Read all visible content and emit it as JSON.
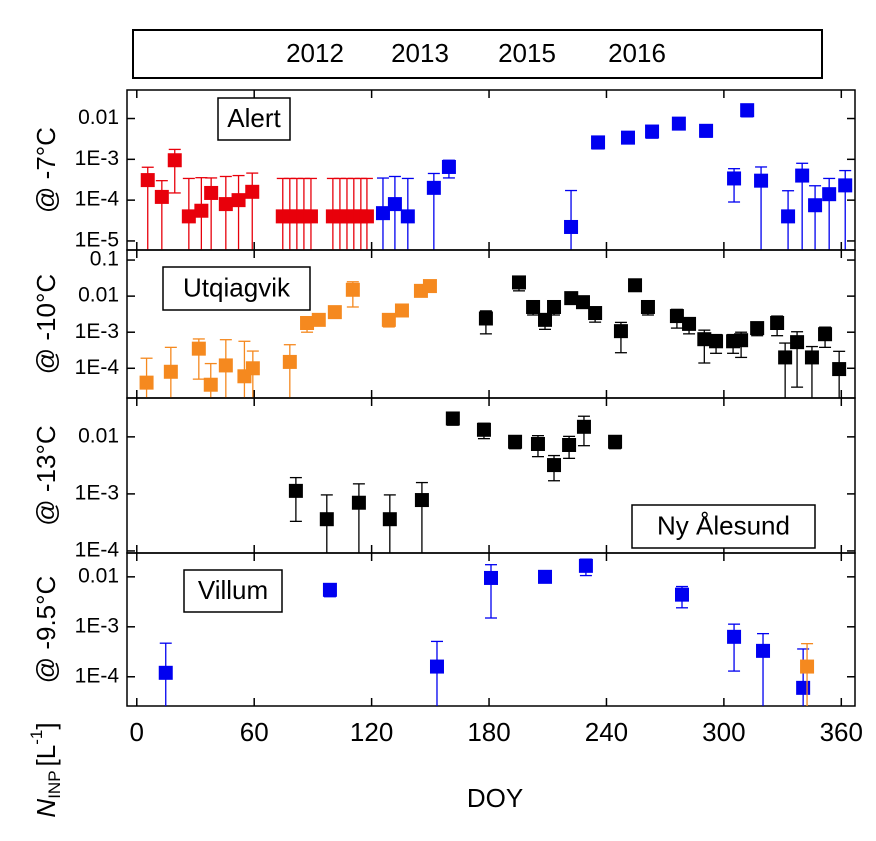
{
  "legend": [
    {
      "name": "2012",
      "color": "#000000"
    },
    {
      "name": "2013",
      "color": "#f5891f"
    },
    {
      "name": "2015",
      "color": "#0000f0"
    },
    {
      "name": "2016",
      "color": "#e8000b"
    }
  ],
  "x_axis": {
    "label": "DOY",
    "xlim": [
      -5,
      367
    ],
    "xticks": [
      0,
      60,
      120,
      180,
      240,
      300,
      360
    ]
  },
  "ylabel_common": {
    "symbol": "N",
    "subscript": "INP",
    "unit": "[L",
    "exponent": "-1",
    "close": "]"
  },
  "chart_data": [
    {
      "type": "scatter",
      "label": "Alert",
      "ylabel": "@ -7°C",
      "log_y": true,
      "ylim": [
        6e-06,
        0.05
      ],
      "yticks": [
        0.01,
        {
          "value": 0.001,
          "label": "1E-3"
        },
        {
          "value": 0.0001,
          "label": "1E-4"
        },
        {
          "value": 1e-05,
          "label": "1E-5"
        }
      ],
      "series": [
        {
          "name": "2016",
          "color": "#e8000b",
          "x": [
            5.6,
            12.8,
            19.4,
            26.6,
            33,
            38,
            45.5,
            52,
            59,
            74.6,
            78.2,
            81.8,
            85.4,
            89,
            100.2,
            103.8,
            107.4,
            110.9,
            114.5,
            117.6
          ],
          "values": [
            0.00031,
            0.00012,
            0.00095,
            4e-05,
            5.5e-05,
            0.00015,
            8e-05,
            0.0001,
            0.00016,
            4e-05,
            4e-05,
            4e-05,
            4e-05,
            4e-05,
            4e-05,
            4e-05,
            4e-05,
            4e-05,
            4e-05,
            4e-05
          ],
          "errors": [
            0.00033,
            0.00018,
            0.0008,
            0.0003,
            0.0003,
            0.0002,
            0.0003,
            0.0003,
            0.0003,
            0.0003,
            0.0003,
            0.0003,
            0.0003,
            0.0003,
            0.0003,
            0.0003,
            0.0003,
            0.0003,
            0.0003,
            0.0003
          ]
        },
        {
          "name": "2015",
          "color": "#0000f0",
          "x": [
            125.8,
            131.9,
            138.5,
            151.8,
            159.5,
            221.9,
            235.7,
            251,
            263.3,
            277,
            290.9,
            311.9,
            305.2,
            319,
            332.8,
            340,
            346.6,
            353.8,
            362
          ],
          "values": [
            4.8e-05,
            8e-05,
            4e-05,
            0.0002,
            0.00065,
            2.2e-05,
            0.0026,
            0.0034,
            0.0048,
            0.0075,
            0.005,
            0.016,
            0.00034,
            0.0003,
            4e-05,
            0.0004,
            7.5e-05,
            0.00014,
            0.00023
          ],
          "errors": [
            0.0003,
            0.0003,
            0.0003,
            0.00025,
            0.0003,
            0.00015,
            0.0008,
            0.0008,
            0.0015,
            0.002,
            0.0015,
            0.005,
            0.00025,
            0.00035,
            0.00013,
            0.0004,
            0.00015,
            0.0002,
            0.0003
          ]
        }
      ]
    },
    {
      "type": "scatter",
      "label": "Utqiagvik",
      "ylabel": "@ -10°C",
      "log_y": true,
      "ylim": [
        1.5e-05,
        0.19
      ],
      "yticks": [
        0.1,
        0.01,
        {
          "value": 0.001,
          "label": "1E-3"
        },
        {
          "value": 0.0001,
          "label": "1E-4"
        }
      ],
      "series": [
        {
          "name": "2013",
          "color": "#f5891f",
          "x": [
            5,
            17.4,
            31.7,
            37.8,
            45.5,
            55,
            59.3,
            78.2,
            87,
            93,
            101.2,
            110.4,
            128.8,
            135.5,
            145.2,
            149.8
          ],
          "values": [
            4e-05,
            8e-05,
            0.00035,
            3.5e-05,
            0.00012,
            6e-05,
            0.0001,
            0.00015,
            0.0018,
            0.0022,
            0.0036,
            0.015,
            0.0022,
            0.004,
            0.014,
            0.019
          ],
          "errors": [
            0.00015,
            0.0003,
            0.0003,
            0.0001,
            0.0005,
            0.0005,
            0.0002,
            0.0003,
            0.0008,
            0.0006,
            0.0008,
            0.01,
            0.0008,
            0.0006,
            0.004,
            0.005
          ]
        },
        {
          "name": "2012",
          "color": "#000000",
          "x": [
            178.4,
            195.3,
            202.5,
            208.6,
            213.2,
            222,
            228,
            234.2,
            247.4,
            254.6,
            261.2,
            276,
            282.2,
            290,
            296,
            304.7,
            308.8,
            317,
            327.2,
            331.3,
            337.4,
            345,
            351.7,
            358.9
          ],
          "values": [
            0.0024,
            0.024,
            0.005,
            0.0022,
            0.005,
            0.0088,
            0.0068,
            0.0034,
            0.00107,
            0.02,
            0.005,
            0.0028,
            0.0017,
            0.00064,
            0.00056,
            0.00056,
            0.0006,
            0.0013,
            0.0018,
            0.0002,
            0.00053,
            0.0002,
            0.00088,
            9.5e-05
          ],
          "errors": [
            0.0015,
            0.01,
            0.002,
            0.001,
            0.002,
            0.002,
            0.002,
            0.0015,
            0.0008,
            0.005,
            0.002,
            0.0015,
            0.0008,
            0.0005,
            0.0003,
            0.0003,
            0.0004,
            0.0005,
            0.001,
            0.0003,
            0.0005,
            0.0002,
            0.0005,
            0.0002
          ]
        }
      ]
    },
    {
      "type": "scatter",
      "label": "Ny Ålesund",
      "ylabel": "@ -13°C",
      "log_y": true,
      "ylim": [
        9.2e-05,
        0.048
      ],
      "yticks": [
        0.01,
        {
          "value": 0.001,
          "label": "1E-3"
        },
        {
          "value": 0.0001,
          "label": "1E-4"
        }
      ],
      "series": [
        {
          "name": "2012",
          "color": "#000000",
          "x": [
            81.3,
            97.1,
            113.5,
            129.3,
            145.7,
            161.5,
            177.4,
            193.3,
            205,
            213.2,
            220.9,
            228.5,
            244.4
          ],
          "values": [
            0.00113,
            0.00036,
            0.0007,
            0.00036,
            0.00078,
            0.021,
            0.0133,
            0.0082,
            0.0075,
            0.0032,
            0.0072,
            0.015,
            0.0082
          ],
          "errors": [
            0.0008,
            0.0006,
            0.0008,
            0.0006,
            0.0008,
            0.005,
            0.004,
            0.002,
            0.003,
            0.0015,
            0.003,
            0.008,
            0.002
          ]
        }
      ]
    },
    {
      "type": "scatter",
      "label": "Villum",
      "ylabel": "@ -9.5°C",
      "log_y": true,
      "ylim": [
        2.6e-05,
        0.03
      ],
      "yticks": [
        0.01,
        {
          "value": 0.001,
          "label": "1E-3"
        },
        {
          "value": 0.0001,
          "label": "1E-4"
        }
      ],
      "series": [
        {
          "name": "2015",
          "color": "#0000f0",
          "x": [
            14.8,
            98.7,
            153.4,
            181,
            208.6,
            229.5,
            278.6,
            305.2,
            320,
            340.5
          ],
          "values": [
            0.00012,
            0.0055,
            0.00016,
            0.0095,
            0.01,
            0.0166,
            0.0044,
            0.00063,
            0.00033,
            6e-05
          ],
          "errors": [
            0.00035,
            0.0015,
            0.00035,
            0.008,
            0.002,
            0.006,
            0.002,
            0.0005,
            0.0004,
            0.0003
          ]
        },
        {
          "name": "2013",
          "color": "#f5891f",
          "x": [
            342.5
          ],
          "values": [
            0.00016
          ],
          "errors": [
            0.0003
          ]
        }
      ]
    }
  ]
}
